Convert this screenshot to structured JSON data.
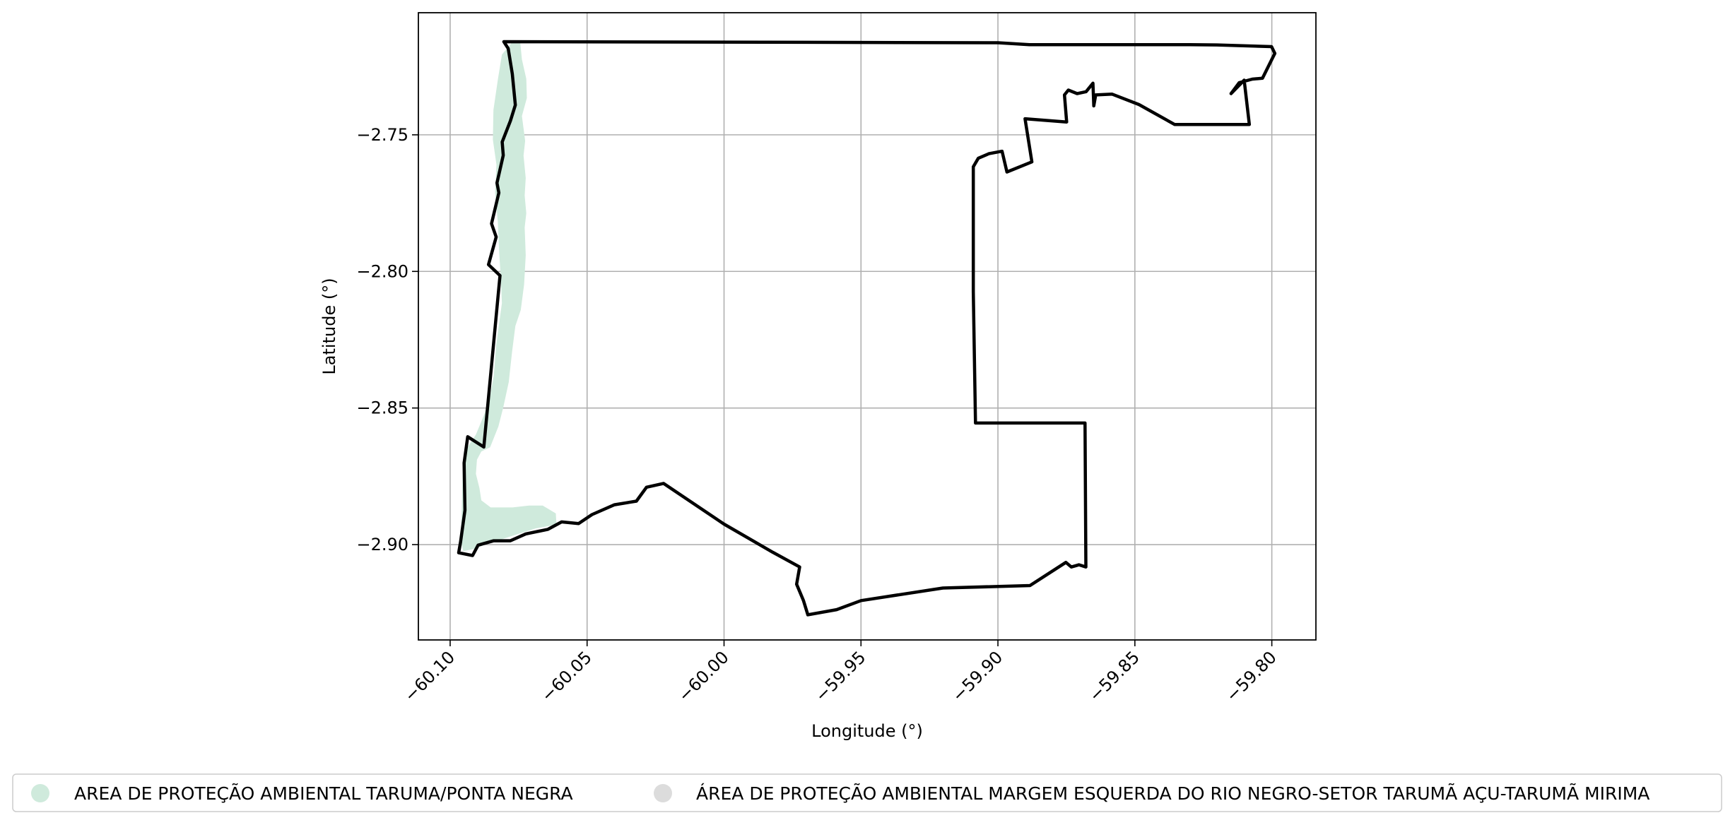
{
  "chart_data": {
    "type": "map",
    "title": "",
    "xlabel": "Longitude (°)",
    "ylabel": "Latitude (°)",
    "xlim": [
      -60.1116,
      -59.7839
    ],
    "ylim": [
      -2.9349,
      -2.7053
    ],
    "grid": true,
    "x_ticks": [
      -60.1,
      -60.05,
      -60.0,
      -59.95,
      -59.9,
      -59.85,
      -59.8
    ],
    "x_tick_labels": [
      "−60.10",
      "−60.05",
      "−60.00",
      "−59.95",
      "−59.90",
      "−59.85",
      "−59.80"
    ],
    "y_ticks": [
      -2.75,
      -2.8,
      -2.85,
      -2.9
    ],
    "y_tick_labels": [
      "−2.75",
      "−2.80",
      "−2.85",
      "−2.90"
    ],
    "legend_position": "bottom",
    "series": [
      {
        "name": "AREA DE PROTEÇÃO AMBIENTAL TARUMA/PONTA NEGRA",
        "color": "#cfeadc",
        "kind": "filled-polygon",
        "polygon": [
          [
            -60.0776,
            -2.7164
          ],
          [
            -60.0744,
            -2.7164
          ],
          [
            -60.0738,
            -2.7224
          ],
          [
            -60.0722,
            -2.7295
          ],
          [
            -60.072,
            -2.7365
          ],
          [
            -60.0738,
            -2.7431
          ],
          [
            -60.0726,
            -2.7522
          ],
          [
            -60.0732,
            -2.7576
          ],
          [
            -60.0724,
            -2.7658
          ],
          [
            -60.0728,
            -2.7722
          ],
          [
            -60.0722,
            -2.7787
          ],
          [
            -60.0728,
            -2.7839
          ],
          [
            -60.0724,
            -2.7941
          ],
          [
            -60.073,
            -2.8048
          ],
          [
            -60.0742,
            -2.8141
          ],
          [
            -60.0762,
            -2.82
          ],
          [
            -60.0774,
            -2.8296
          ],
          [
            -60.0786,
            -2.8405
          ],
          [
            -60.0806,
            -2.8498
          ],
          [
            -60.0824,
            -2.8568
          ],
          [
            -60.0854,
            -2.8644
          ],
          [
            -60.0886,
            -2.8659
          ],
          [
            -60.0902,
            -2.8689
          ],
          [
            -60.0906,
            -2.8741
          ],
          [
            -60.0893,
            -2.8793
          ],
          [
            -60.0886,
            -2.8838
          ],
          [
            -60.0852,
            -2.8864
          ],
          [
            -60.0772,
            -2.8864
          ],
          [
            -60.0712,
            -2.8857
          ],
          [
            -60.0662,
            -2.8857
          ],
          [
            -60.0614,
            -2.8886
          ],
          [
            -60.0612,
            -2.8927
          ],
          [
            -60.0689,
            -2.8941
          ],
          [
            -60.0779,
            -2.897
          ],
          [
            -60.0857,
            -2.8995
          ],
          [
            -60.0914,
            -2.9016
          ],
          [
            -60.0952,
            -2.9024
          ],
          [
            -60.0961,
            -2.899
          ],
          [
            -60.0958,
            -2.8879
          ],
          [
            -60.0954,
            -2.8717
          ],
          [
            -60.0944,
            -2.8655
          ],
          [
            -60.0906,
            -2.8597
          ],
          [
            -60.0876,
            -2.8525
          ],
          [
            -60.0856,
            -2.8466
          ],
          [
            -60.0841,
            -2.8383
          ],
          [
            -60.0832,
            -2.8269
          ],
          [
            -60.0811,
            -2.8116
          ],
          [
            -60.0816,
            -2.8011
          ],
          [
            -60.0821,
            -2.793
          ],
          [
            -60.0826,
            -2.7818
          ],
          [
            -60.0836,
            -2.7711
          ],
          [
            -60.0831,
            -2.761
          ],
          [
            -60.0844,
            -2.7518
          ],
          [
            -60.0842,
            -2.7409
          ],
          [
            -60.0826,
            -2.7299
          ],
          [
            -60.0811,
            -2.7206
          ]
        ]
      },
      {
        "name": "ÁREA DE PROTEÇÃO AMBIENTAL MARGEM ESQUERDA DO RIO NEGRO-SETOR TARUMÃ AÇU-TARUMÃ MIRIMA",
        "color": "#dcdcdc",
        "kind": "outlined-polygon",
        "stroke": "#000000",
        "polygon": [
          [
            -60.0804,
            -2.7159
          ],
          [
            -59.9,
            -2.7163
          ],
          [
            -59.8885,
            -2.717
          ],
          [
            -59.83,
            -2.717
          ],
          [
            -59.8201,
            -2.7171
          ],
          [
            -59.8001,
            -2.7177
          ],
          [
            -59.7989,
            -2.7202
          ],
          [
            -59.7995,
            -2.7214
          ],
          [
            -59.8034,
            -2.7293
          ],
          [
            -59.8071,
            -2.7296
          ],
          [
            -59.8119,
            -2.7309
          ],
          [
            -59.8149,
            -2.7349
          ],
          [
            -59.8101,
            -2.73
          ],
          [
            -59.8082,
            -2.7462
          ],
          [
            -59.8355,
            -2.7462
          ],
          [
            -59.8485,
            -2.7389
          ],
          [
            -59.8583,
            -2.7351
          ],
          [
            -59.8643,
            -2.7354
          ],
          [
            -59.865,
            -2.7394
          ],
          [
            -59.8653,
            -2.7311
          ],
          [
            -59.8678,
            -2.7342
          ],
          [
            -59.8711,
            -2.7349
          ],
          [
            -59.8743,
            -2.7336
          ],
          [
            -59.8757,
            -2.7354
          ],
          [
            -59.8749,
            -2.7453
          ],
          [
            -59.8901,
            -2.7441
          ],
          [
            -59.8876,
            -2.7599
          ],
          [
            -59.8967,
            -2.7636
          ],
          [
            -59.8985,
            -2.756
          ],
          [
            -59.9033,
            -2.7569
          ],
          [
            -59.9072,
            -2.7586
          ],
          [
            -59.909,
            -2.7617
          ],
          [
            -59.909,
            -2.8074
          ],
          [
            -59.9082,
            -2.8555
          ],
          [
            -59.8682,
            -2.8555
          ],
          [
            -59.8679,
            -2.9082
          ],
          [
            -59.8704,
            -2.9074
          ],
          [
            -59.8732,
            -2.9082
          ],
          [
            -59.8752,
            -2.9065
          ],
          [
            -59.8883,
            -2.915
          ],
          [
            -59.9201,
            -2.9159
          ],
          [
            -59.95,
            -2.9205
          ],
          [
            -59.9589,
            -2.9238
          ],
          [
            -59.9694,
            -2.9257
          ],
          [
            -59.971,
            -2.9205
          ],
          [
            -59.9735,
            -2.9145
          ],
          [
            -59.9724,
            -2.9082
          ],
          [
            -59.9822,
            -2.9028
          ],
          [
            -60.0,
            -2.8925
          ],
          [
            -60.0221,
            -2.8776
          ],
          [
            -60.0283,
            -2.879
          ],
          [
            -60.032,
            -2.8841
          ],
          [
            -60.04,
            -2.8854
          ],
          [
            -60.0482,
            -2.889
          ],
          [
            -60.0531,
            -2.8923
          ],
          [
            -60.0593,
            -2.8917
          ],
          [
            -60.0643,
            -2.8944
          ],
          [
            -60.0724,
            -2.8961
          ],
          [
            -60.078,
            -2.8986
          ],
          [
            -60.0841,
            -2.8986
          ],
          [
            -60.0898,
            -2.9002
          ],
          [
            -60.0918,
            -2.904
          ],
          [
            -60.0969,
            -2.903
          ],
          [
            -60.0962,
            -2.899
          ],
          [
            -60.0946,
            -2.8874
          ],
          [
            -60.0949,
            -2.8701
          ],
          [
            -60.0936,
            -2.8605
          ],
          [
            -60.0877,
            -2.8643
          ],
          [
            -60.0818,
            -2.8015
          ],
          [
            -60.086,
            -2.7975
          ],
          [
            -60.0832,
            -2.7874
          ],
          [
            -60.0849,
            -2.7825
          ],
          [
            -60.0822,
            -2.7712
          ],
          [
            -60.0829,
            -2.7676
          ],
          [
            -60.0806,
            -2.7575
          ],
          [
            -60.081,
            -2.7526
          ],
          [
            -60.078,
            -2.7449
          ],
          [
            -60.0762,
            -2.7391
          ],
          [
            -60.0773,
            -2.7277
          ],
          [
            -60.0788,
            -2.7184
          ]
        ]
      }
    ]
  }
}
